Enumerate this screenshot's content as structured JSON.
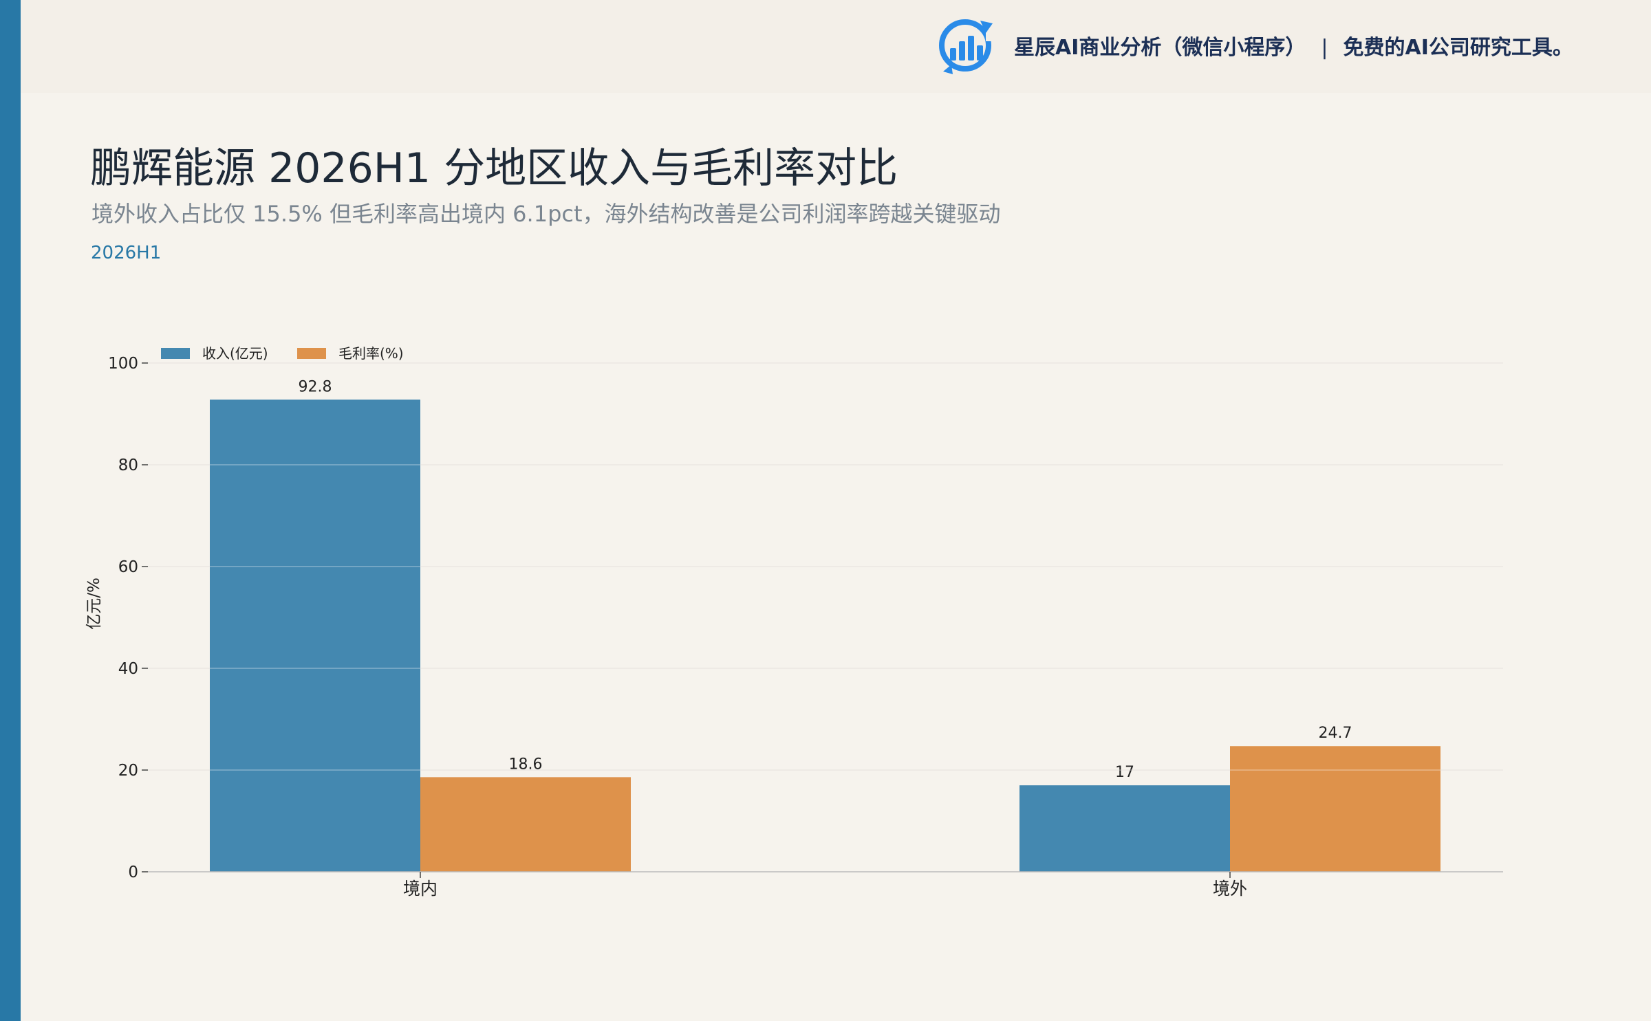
{
  "brand": {
    "name": "星辰AI商业分析（微信小程序）",
    "separator": "|",
    "tagline": "免费的AI公司研究工具。",
    "logo_icon": "bar-chart-refresh-logo",
    "logo_color": "#2a8be8"
  },
  "header": {
    "title": "鹏辉能源 2026H1 分地区收入与毛利率对比",
    "subtitle": "境外收入占比仅 15.5% 但毛利率高出境内 6.1pct，海外结构改善是公司利润率跨越关键驱动",
    "period": "2026H1"
  },
  "colors": {
    "accent": "#2878a6",
    "series_revenue": "#4488b0",
    "series_margin": "#de924b",
    "background": "#f6f3ed"
  },
  "chart_data": {
    "type": "bar",
    "categories": [
      "境内",
      "境外"
    ],
    "series": [
      {
        "name": "收入(亿元)",
        "values": [
          92.8,
          17
        ],
        "labels": [
          "92.8",
          "17"
        ]
      },
      {
        "name": "毛利率(%)",
        "values": [
          18.6,
          24.7
        ],
        "labels": [
          "18.6",
          "24.7"
        ]
      }
    ],
    "ylabel": "亿元/%",
    "ylim": [
      0,
      100
    ],
    "yticks": [
      0,
      20,
      40,
      60,
      80,
      100
    ],
    "grid": true,
    "legend": "top-left"
  }
}
